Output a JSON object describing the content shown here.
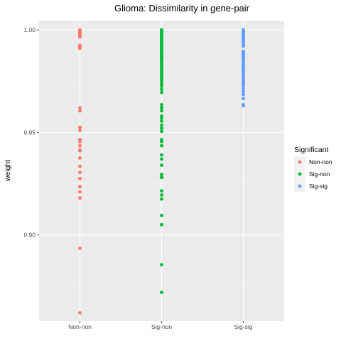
{
  "chart_data": {
    "type": "scatter",
    "title": "Glioma: Dissimilarity in gene-pair",
    "xlabel": "",
    "ylabel": "weight",
    "categories": [
      "Non-non",
      "Sig-non",
      "Sig-sig"
    ],
    "ylim": [
      0.858,
      1.0045
    ],
    "yticks": [
      0.9,
      0.95,
      1.0
    ],
    "ytick_labels": [
      "0.90",
      "0.95",
      "1.00"
    ],
    "grid": true,
    "legend": {
      "title": "Significant",
      "placement": "right",
      "entries": [
        "Non-non",
        "Sig-non",
        "Sig-sig"
      ]
    },
    "series": [
      {
        "name": "Non-non",
        "category": "Non-non",
        "color": "#F8766D",
        "values": [
          1.0,
          0.9995,
          0.999,
          0.9985,
          0.998,
          0.9975,
          0.997,
          0.9965,
          0.9925,
          0.992,
          0.9915,
          0.991,
          0.962,
          0.9605,
          0.9525,
          0.951,
          0.9465,
          0.9455,
          0.9435,
          0.9415,
          0.941,
          0.9375,
          0.9335,
          0.9305,
          0.9275,
          0.9235,
          0.921,
          0.918,
          0.8935,
          0.862
        ]
      },
      {
        "name": "Sig-non",
        "category": "Sig-non",
        "color": "#00BA38",
        "values": [
          1.0,
          0.9995,
          0.999,
          0.9985,
          0.998,
          0.9975,
          0.997,
          0.9965,
          0.996,
          0.9955,
          0.995,
          0.9945,
          0.994,
          0.9935,
          0.993,
          0.9925,
          0.992,
          0.9915,
          0.991,
          0.9905,
          0.99,
          0.9895,
          0.989,
          0.9885,
          0.988,
          0.9875,
          0.987,
          0.9865,
          0.986,
          0.9855,
          0.985,
          0.9845,
          0.984,
          0.983,
          0.982,
          0.981,
          0.98,
          0.979,
          0.978,
          0.9775,
          0.9765,
          0.9755,
          0.9745,
          0.9735,
          0.9725,
          0.971,
          0.9695,
          0.9635,
          0.962,
          0.9605,
          0.958,
          0.957,
          0.9555,
          0.9535,
          0.952,
          0.9505,
          0.9465,
          0.9455,
          0.9435,
          0.939,
          0.937,
          0.934,
          0.9295,
          0.928,
          0.9215,
          0.9195,
          0.9175,
          0.9095,
          0.905,
          0.8855,
          0.872
        ]
      },
      {
        "name": "Sig-sig",
        "category": "Sig-sig",
        "color": "#619CFF",
        "values": [
          1.0,
          0.9995,
          0.999,
          0.9985,
          0.998,
          0.9975,
          0.997,
          0.9965,
          0.996,
          0.9955,
          0.995,
          0.9945,
          0.994,
          0.993,
          0.992,
          0.9895,
          0.989,
          0.9885,
          0.988,
          0.9875,
          0.987,
          0.9865,
          0.986,
          0.985,
          0.984,
          0.983,
          0.982,
          0.9815,
          0.981,
          0.98,
          0.979,
          0.978,
          0.977,
          0.976,
          0.975,
          0.974,
          0.973,
          0.9715,
          0.97,
          0.9685,
          0.9665,
          0.9635,
          0.963
        ]
      }
    ]
  }
}
